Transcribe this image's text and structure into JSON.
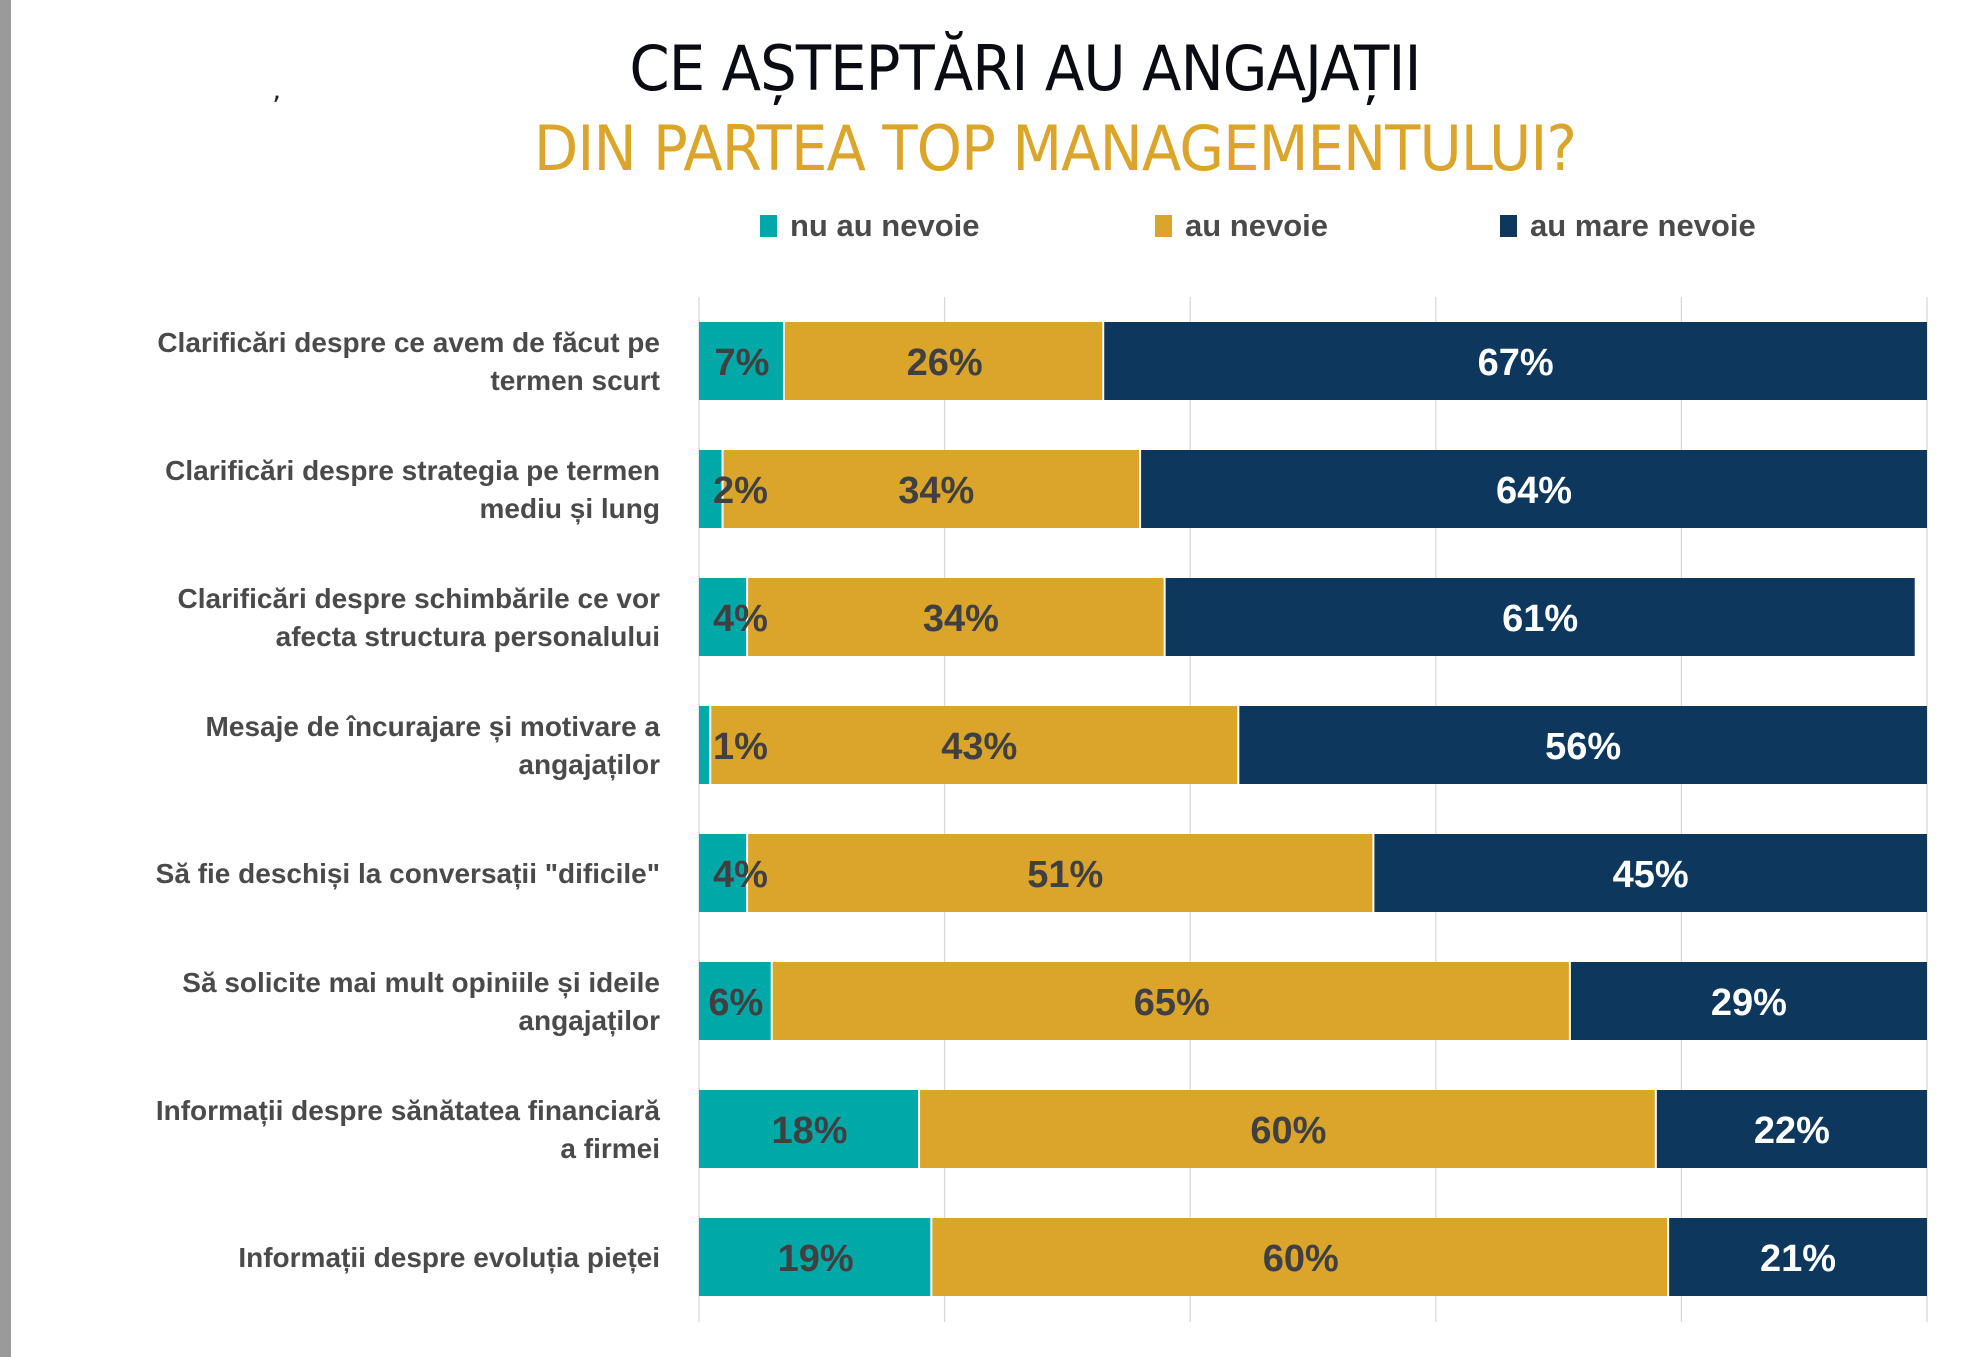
{
  "chart_data": {
    "type": "bar",
    "orientation": "horizontal",
    "stacked": true,
    "title": "CE AȘTEPTĂRI AU ANGAJAȚII",
    "subtitle": "DIN PARTEA TOP MANAGEMENTULUI?",
    "xlabel": "",
    "ylabel": "",
    "xlim": [
      0,
      100
    ],
    "x_gridlines": [
      0,
      20,
      40,
      60,
      80,
      100
    ],
    "grid": true,
    "legend_position": "top",
    "categories": [
      [
        "Clarificări despre ce avem de făcut pe",
        "termen scurt"
      ],
      [
        "Clarificări despre strategia pe termen",
        "mediu și lung"
      ],
      [
        "Clarificări despre schimbările ce vor",
        "afecta structura personalului"
      ],
      [
        "Mesaje de încurajare și motivare a",
        "angajaților"
      ],
      [
        "Să fie deschiși la conversații \"dificile\""
      ],
      [
        "Să solicite mai mult opiniile și ideile",
        "angajaților"
      ],
      [
        "Informații despre sănătatea financiară",
        "a firmei"
      ],
      [
        "Informații despre evoluția pieței"
      ]
    ],
    "series": [
      {
        "name": "nu au nevoie",
        "color": "#00A9A8",
        "label_color": "#404040",
        "values": [
          7,
          2,
          4,
          1,
          4,
          6,
          18,
          19
        ]
      },
      {
        "name": "au nevoie",
        "color": "#DAA52A",
        "label_color": "#404040",
        "values": [
          26,
          34,
          34,
          43,
          51,
          65,
          60,
          60
        ]
      },
      {
        "name": "au mare nevoie",
        "color": "#0D375C",
        "label_color": "#ffffff",
        "values": [
          67,
          64,
          61,
          56,
          45,
          29,
          22,
          21
        ]
      }
    ],
    "value_suffix": "%"
  },
  "misc": {
    "stray_mark": "ʼ"
  }
}
